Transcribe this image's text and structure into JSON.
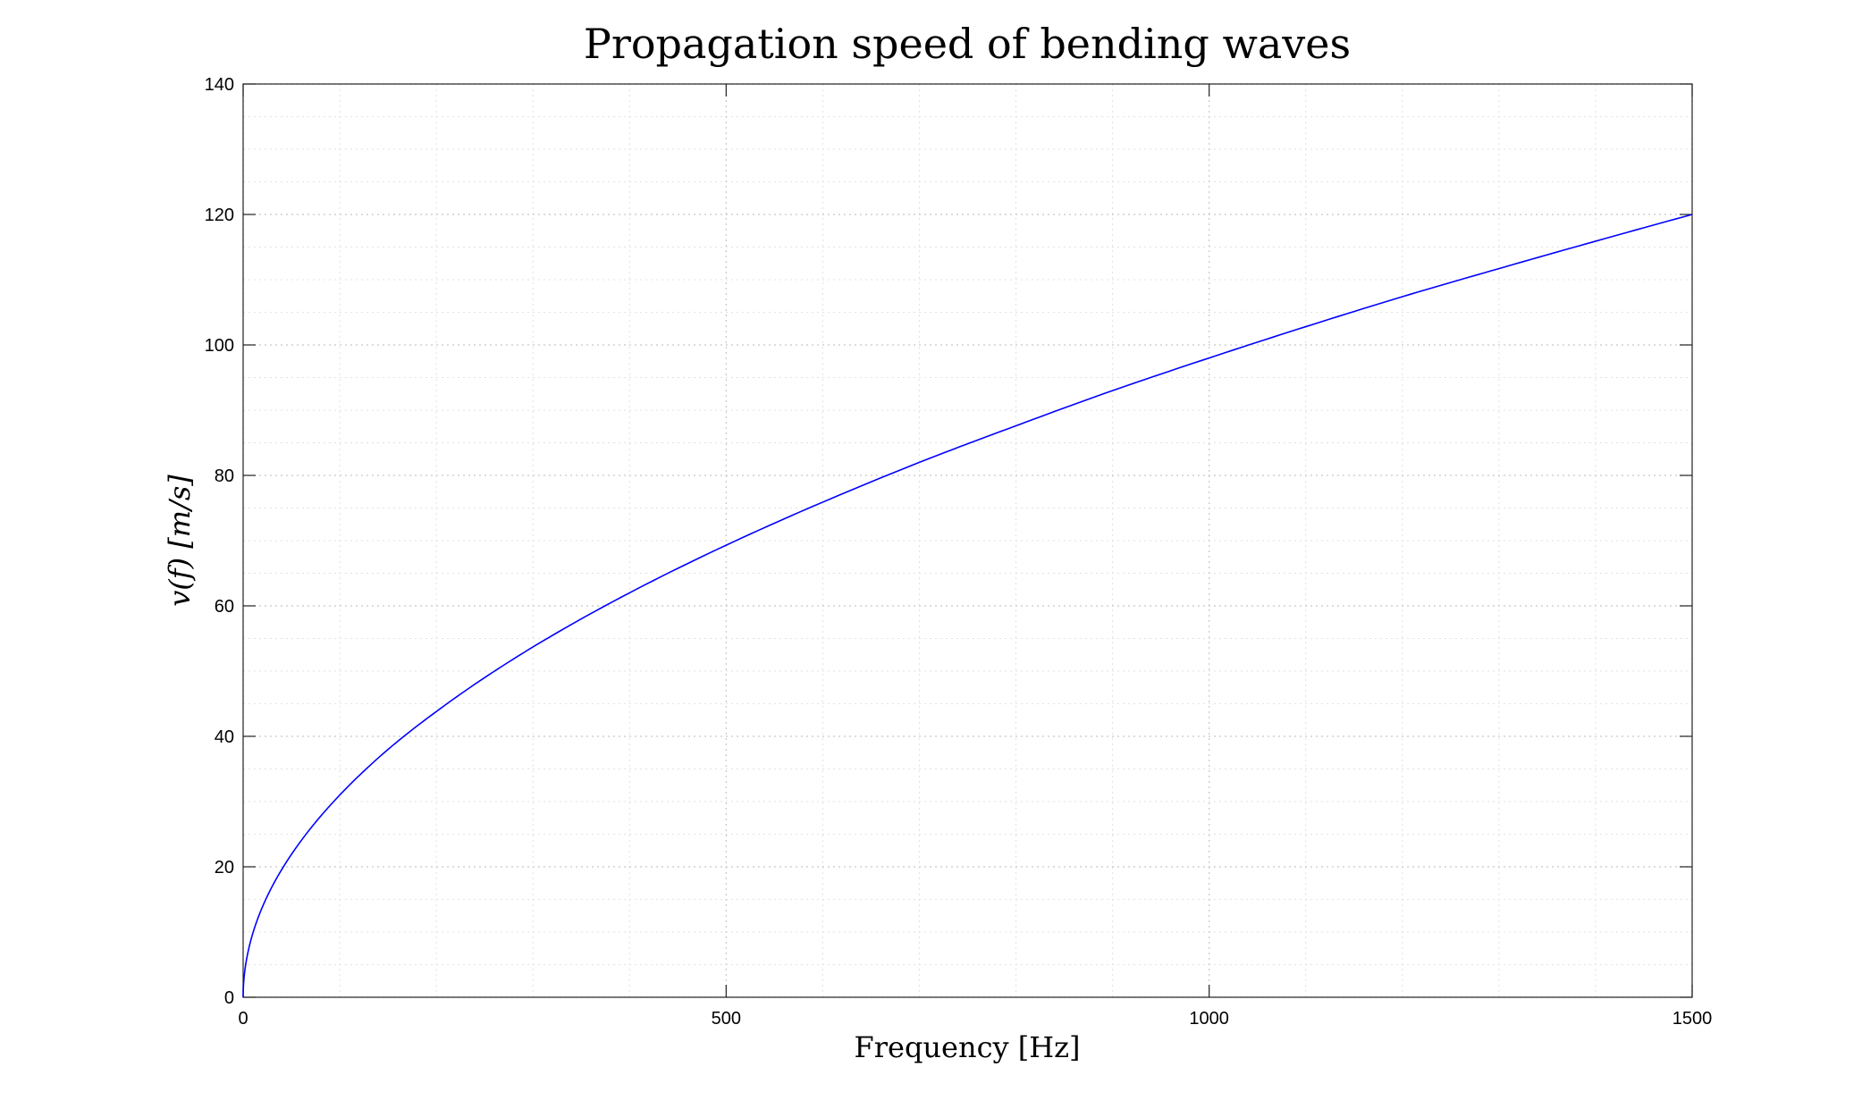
{
  "chart_data": {
    "type": "line",
    "title": "Propagation speed of bending waves",
    "xlabel": "Frequency [Hz]",
    "ylabel": "v(f) [m/s]",
    "xlim": [
      0,
      1500
    ],
    "ylim": [
      0,
      140
    ],
    "xticks": [
      0,
      500,
      1000,
      1500
    ],
    "yticks": [
      0,
      20,
      40,
      60,
      80,
      100,
      120,
      140
    ],
    "x_minor_step": 100,
    "y_minor_step": 5,
    "grid": true,
    "minor_grid": true,
    "series": [
      {
        "color": "#0000ff",
        "x": [
          0,
          1,
          5,
          10,
          25,
          50,
          100,
          150,
          200,
          250,
          300,
          400,
          500,
          600,
          700,
          800,
          900,
          1000,
          1100,
          1200,
          1300,
          1400,
          1500
        ],
        "y": [
          0,
          3.1,
          6.9,
          9.8,
          15.5,
          21.9,
          31.0,
          38.0,
          43.8,
          49.0,
          53.7,
          62.0,
          69.3,
          75.9,
          82.0,
          87.6,
          93.0,
          98.0,
          102.8,
          107.4,
          111.7,
          115.9,
          120.0
        ]
      }
    ]
  }
}
